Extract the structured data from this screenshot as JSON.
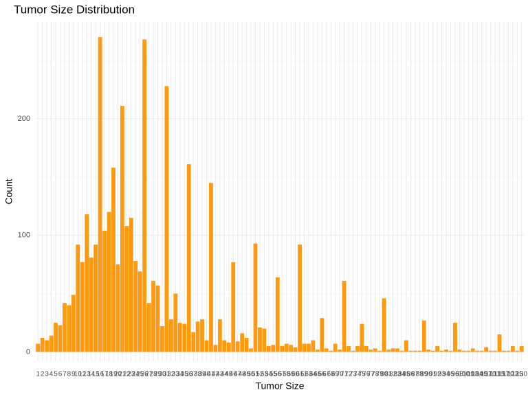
{
  "chart_data": {
    "type": "bar",
    "title": "Tumor Size Distribution",
    "x_label": "Tumor Size",
    "y_label": "Count",
    "categories": [
      "1",
      "2",
      "3",
      "4",
      "5",
      "6",
      "7",
      "8",
      "9",
      "10",
      "12",
      "13",
      "14",
      "15",
      "16",
      "17",
      "18",
      "19",
      "20",
      "21",
      "22",
      "23",
      "24",
      "25",
      "26",
      "27",
      "28",
      "29",
      "30",
      "31",
      "32",
      "33",
      "34",
      "35",
      "36",
      "37",
      "38",
      "39",
      "40",
      "41",
      "42",
      "43",
      "44",
      "45",
      "46",
      "47",
      "48",
      "49",
      "50",
      "51",
      "52",
      "53",
      "54",
      "55",
      "56",
      "57",
      "58",
      "59",
      "60",
      "61",
      "62",
      "63",
      "64",
      "65",
      "66",
      "67",
      "68",
      "69",
      "70",
      "71",
      "72",
      "73",
      "74",
      "75",
      "76",
      "77",
      "78",
      "79",
      "80",
      "81",
      "82",
      "83",
      "84",
      "85",
      "86",
      "87",
      "88",
      "89",
      "90",
      "91",
      "92",
      "93",
      "94",
      "95",
      "96",
      "98",
      "100",
      "101",
      "103",
      "104",
      "105",
      "107",
      "110",
      "111",
      "115",
      "117",
      "120",
      "123",
      "125",
      "130"
    ],
    "values": [
      7,
      12,
      10,
      14,
      25,
      23,
      42,
      40,
      49,
      92,
      77,
      118,
      81,
      92,
      270,
      104,
      120,
      158,
      75,
      211,
      108,
      115,
      78,
      69,
      268,
      42,
      61,
      57,
      22,
      228,
      28,
      50,
      25,
      24,
      161,
      17,
      26,
      28,
      10,
      145,
      6,
      28,
      10,
      8,
      77,
      9,
      16,
      12,
      3,
      93,
      21,
      20,
      5,
      6,
      64,
      5,
      7,
      6,
      4,
      92,
      7,
      7,
      10,
      2,
      29,
      3,
      1,
      7,
      2,
      61,
      5,
      1,
      5,
      24,
      5,
      2,
      3,
      1,
      46,
      2,
      3,
      3,
      1,
      10,
      1,
      1,
      1,
      27,
      2,
      1,
      5,
      1,
      2,
      1,
      25,
      2,
      1,
      1,
      3,
      1,
      1,
      4,
      1,
      1,
      15,
      1,
      1,
      5,
      1,
      5
    ],
    "color": "#ff9a10",
    "ylim": [
      -8,
      283
    ],
    "yticks": [
      0,
      100,
      200
    ],
    "grid": true
  }
}
